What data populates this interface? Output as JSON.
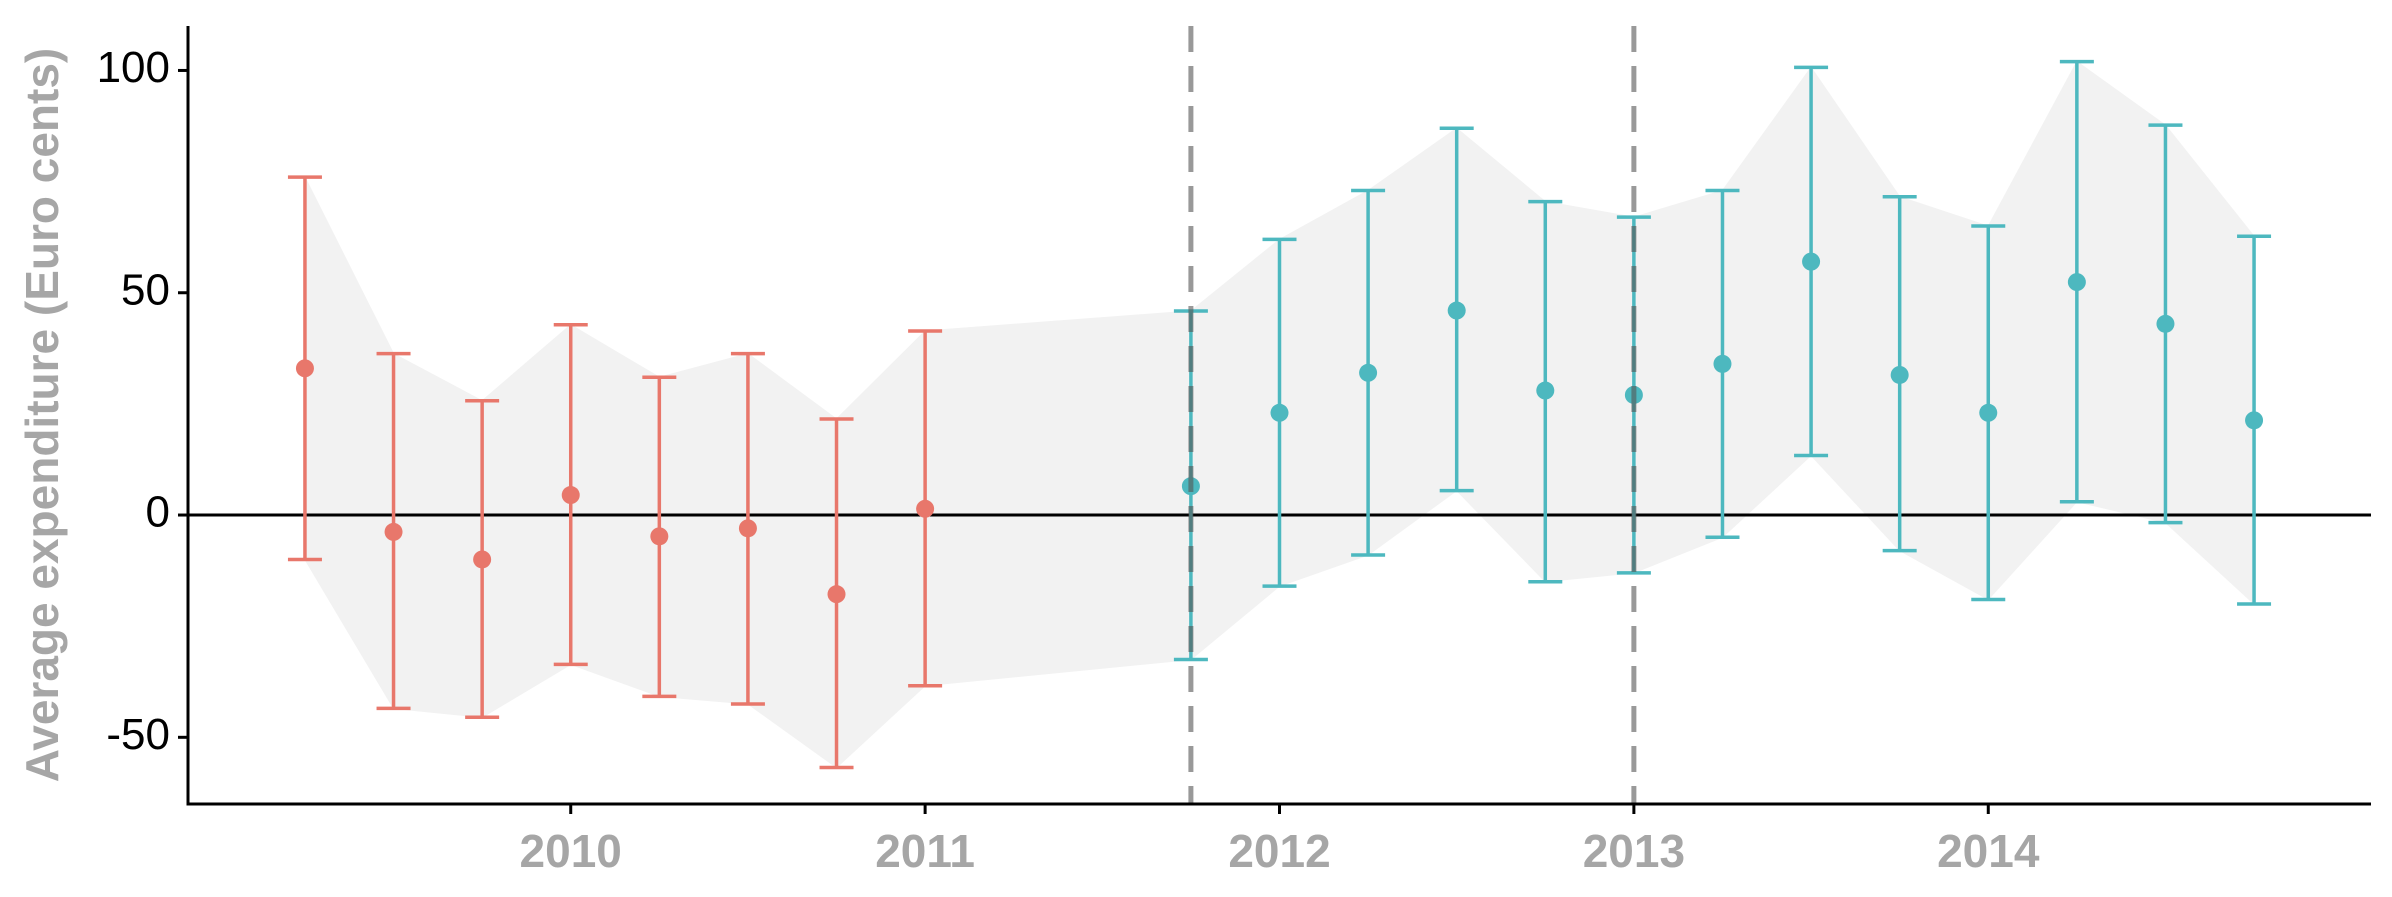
{
  "chart_data": {
    "type": "errorbar",
    "ylabel": "Average expenditure (Euro cents)",
    "xlim": [
      2008.92,
      2015.08
    ],
    "ylim": [
      -65,
      110
    ],
    "xticks": [
      2010,
      2011,
      2012,
      2013,
      2014
    ],
    "yticks": [
      -50,
      0,
      50,
      100
    ],
    "hline": 0,
    "vlines": [
      2011.75,
      2013
    ],
    "ribbon_color": "#f2f2f2",
    "series": [
      {
        "color": "#E8776B",
        "x": [
          2009.25,
          2009.5,
          2009.75,
          2010,
          2010.25,
          2010.5,
          2010.75,
          2011
        ],
        "values": [
          33,
          -3.8,
          -10,
          4.5,
          -4.8,
          -3,
          -17.8,
          1.4
        ],
        "lower": [
          -10,
          -43.5,
          -45.5,
          -33.6,
          -40.8,
          -42.5,
          -56.8,
          -38.4
        ],
        "upper": [
          76,
          36.3,
          25.7,
          42.8,
          31,
          36.3,
          21.6,
          41.4
        ]
      },
      {
        "color": "#4DB8BF",
        "x": [
          2011.75,
          2012,
          2012.25,
          2012.5,
          2012.75,
          2013,
          2013.25,
          2013.5,
          2013.75,
          2014,
          2014.25,
          2014.5,
          2014.75
        ],
        "values": [
          6.5,
          23,
          32,
          46,
          28,
          27,
          34,
          57,
          31.5,
          23,
          52.4,
          43,
          21.3
        ],
        "lower": [
          -32.5,
          -16,
          -9,
          5.5,
          -15,
          -13,
          -5,
          13.4,
          -8,
          -19,
          3,
          -1.7,
          -20
        ],
        "upper": [
          45.9,
          62,
          73,
          87,
          70.5,
          67,
          73,
          100.7,
          71.6,
          65,
          102,
          87.7,
          62.7
        ]
      }
    ]
  }
}
